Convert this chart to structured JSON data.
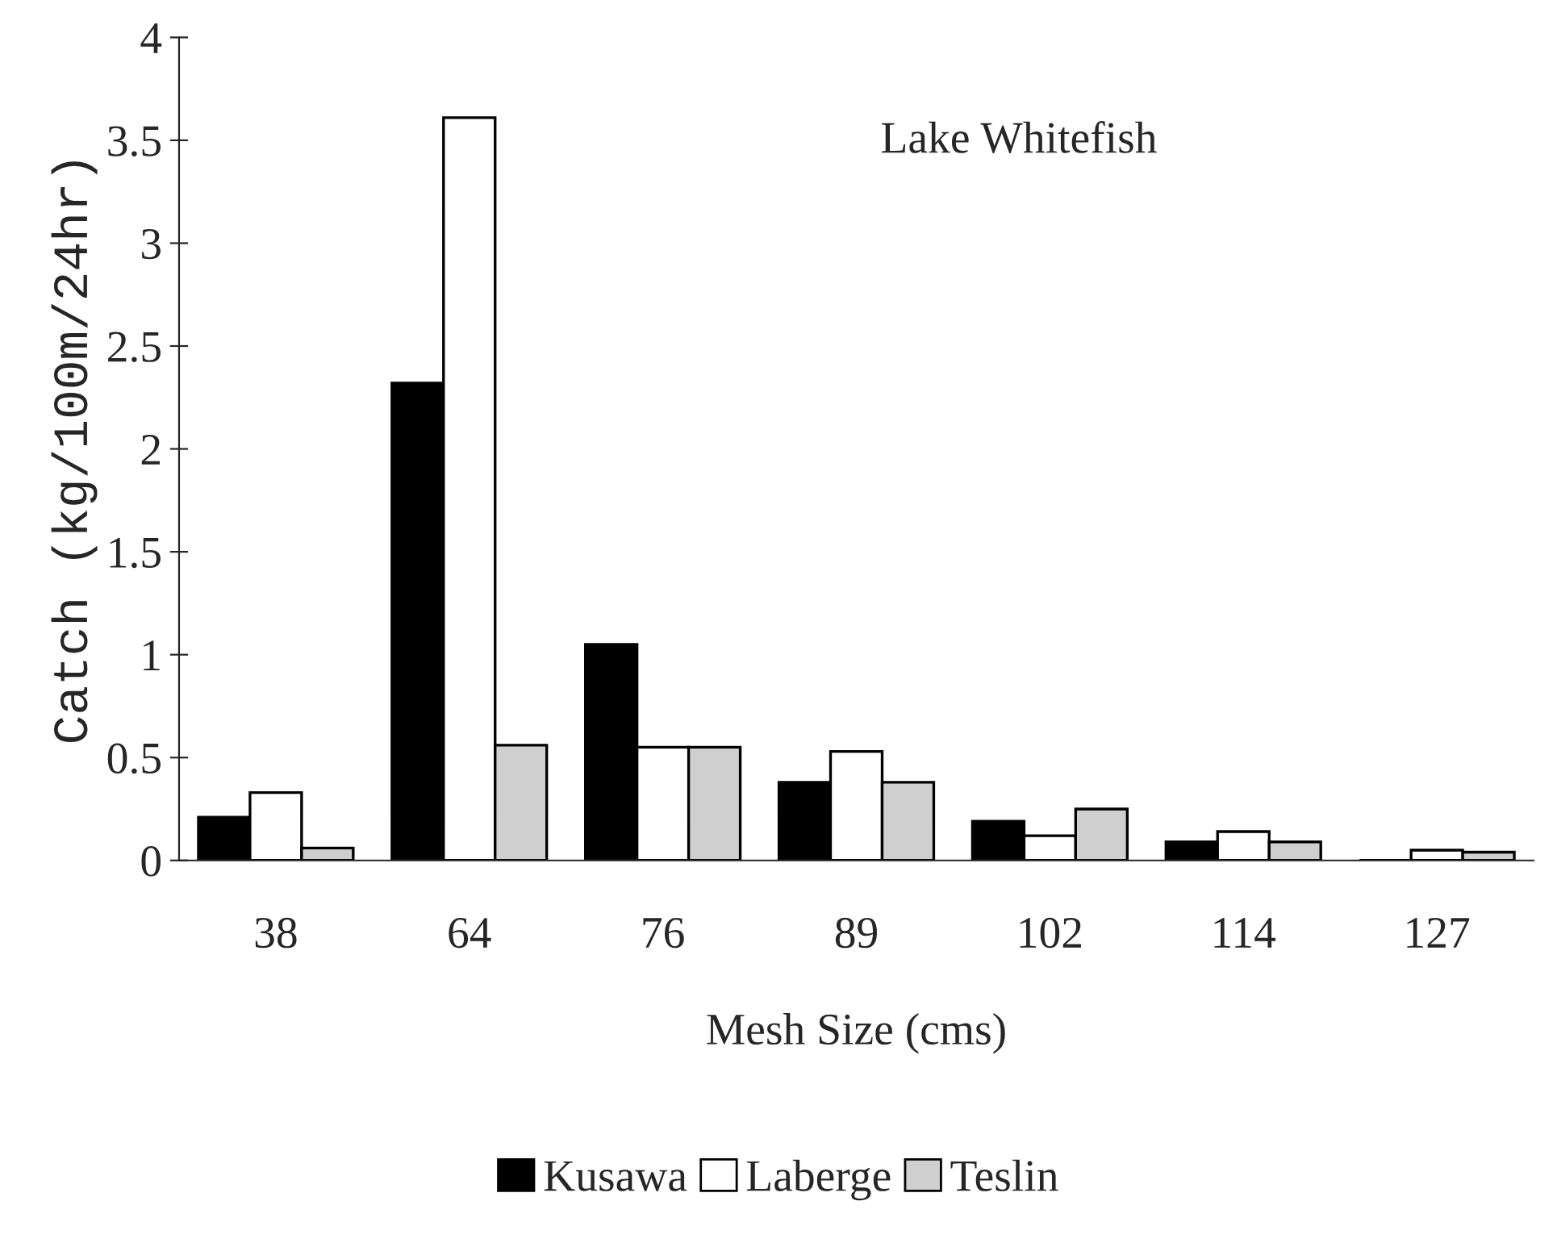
{
  "chart_data": {
    "type": "bar",
    "xlabel": "Mesh Size (cms)",
    "ylabel": "Catch (kg/100m/24hr)",
    "annotations": [
      "Lake Whitefish"
    ],
    "categories": [
      "38",
      "64",
      "76",
      "89",
      "102",
      "114",
      "127"
    ],
    "series": [
      {
        "name": "Kusawa",
        "color": "#000000",
        "values": [
          0.21,
          2.32,
          1.05,
          0.38,
          0.19,
          0.09,
          0
        ]
      },
      {
        "name": "Laberge",
        "color": "#ffffff",
        "values": [
          0.33,
          3.61,
          0.55,
          0.53,
          0.12,
          0.14,
          0.05
        ]
      },
      {
        "name": "Teslin",
        "color": "#cfcfcf",
        "values": [
          0.06,
          0.56,
          0.55,
          0.38,
          0.25,
          0.09,
          0.04
        ]
      }
    ],
    "ylim": [
      0,
      4
    ],
    "yticks": [
      0,
      0.5,
      1,
      1.5,
      2,
      2.5,
      3,
      3.5,
      4
    ],
    "grid": false,
    "legend": "bottom"
  }
}
